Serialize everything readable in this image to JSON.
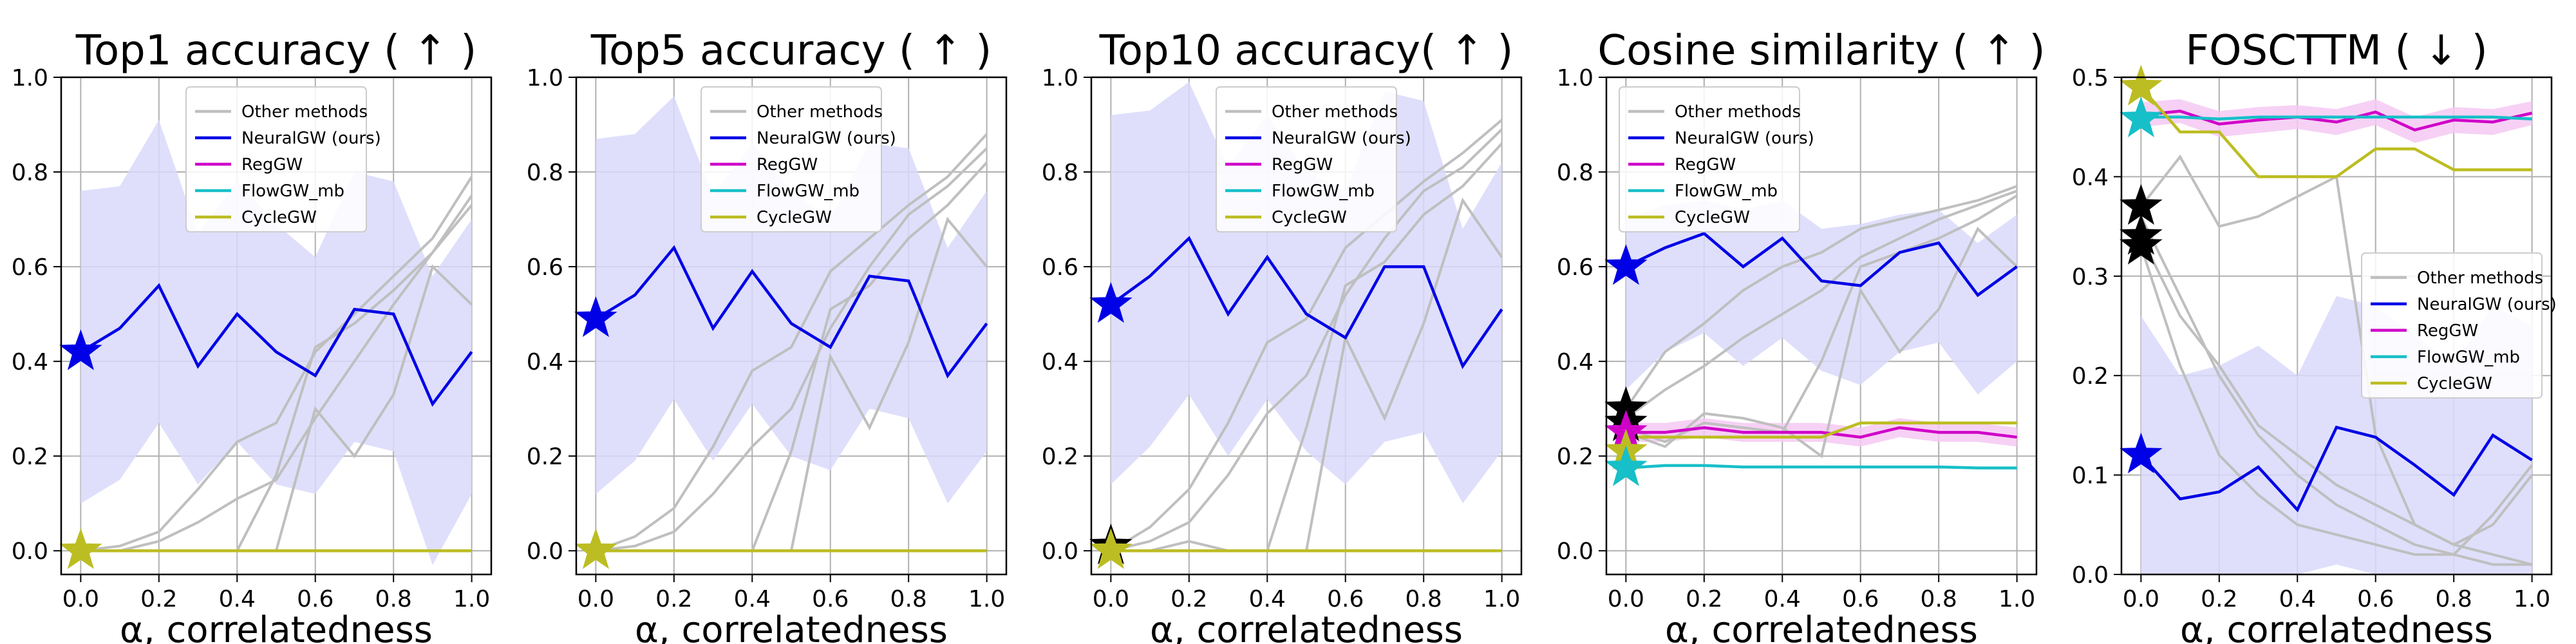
{
  "colors": {
    "other": "#bfbfbf",
    "neuralgw": "#0000e6",
    "neuralgw_band": "#d9d9fb",
    "reggw": "#d000c8",
    "reggw_band": "#f5c9f3",
    "flowgw": "#17bfc8",
    "cyclegw": "#bcbd22",
    "other_star": "#000000",
    "grid": "#b0b0b0"
  },
  "chart_data": [
    {
      "type": "line",
      "title": "Top1 accuracy ( ↑ )",
      "xlabel": "α, correlatedness",
      "ylabel": "",
      "ylim": [
        -0.05,
        1.0
      ],
      "xlim": [
        -0.05,
        1.05
      ],
      "xticks": [
        "0.0",
        "0.2",
        "0.4",
        "0.6",
        "0.8",
        "1.0"
      ],
      "yticks": [
        "0.0",
        "0.2",
        "0.4",
        "0.6",
        "0.8",
        "1.0"
      ],
      "grid": true,
      "legend_position": "top-center",
      "x": [
        0.0,
        0.1,
        0.2,
        0.3,
        0.4,
        0.5,
        0.6,
        0.7,
        0.8,
        0.9,
        1.0
      ],
      "other_methods": [
        [
          0.0,
          0.01,
          0.04,
          0.13,
          0.23,
          0.27,
          0.42,
          0.5,
          0.58,
          0.66,
          0.79
        ],
        [
          0.0,
          0.0,
          0.02,
          0.06,
          0.11,
          0.15,
          0.28,
          0.4,
          0.52,
          0.63,
          0.75
        ],
        [
          0.0,
          0.0,
          0.0,
          0.0,
          0.0,
          0.0,
          0.3,
          0.2,
          0.33,
          0.6,
          0.52
        ],
        [
          0.0,
          0.0,
          0.0,
          0.0,
          0.0,
          0.16,
          0.43,
          0.48,
          0.55,
          0.63,
          0.73
        ]
      ],
      "series": [
        {
          "name": "NeuralGW (ours)",
          "values": [
            0.42,
            0.47,
            0.56,
            0.39,
            0.5,
            0.42,
            0.37,
            0.51,
            0.5,
            0.31,
            0.42
          ],
          "band_upper": [
            0.76,
            0.77,
            0.91,
            0.67,
            0.78,
            0.69,
            0.62,
            0.8,
            0.78,
            0.58,
            0.7
          ],
          "band_lower": [
            0.1,
            0.15,
            0.27,
            0.14,
            0.23,
            0.14,
            0.12,
            0.23,
            0.21,
            -0.03,
            0.12
          ]
        },
        {
          "name": "RegGW",
          "values": [
            0.0,
            0.0,
            0.0,
            0.0,
            0.0,
            0.0,
            0.0,
            0.0,
            0.0,
            0.0,
            0.0
          ]
        },
        {
          "name": "FlowGW_mb",
          "values": [
            0.0,
            0.0,
            0.0,
            0.0,
            0.0,
            0.0,
            0.0,
            0.0,
            0.0,
            0.0,
            0.0
          ]
        },
        {
          "name": "CycleGW",
          "values": [
            0.0,
            0.0,
            0.0,
            0.0,
            0.0,
            0.0,
            0.0,
            0.0,
            0.0,
            0.0,
            0.0
          ]
        }
      ],
      "stars": [
        {
          "series": "NeuralGW (ours)",
          "value": 0.42
        },
        {
          "series": "CycleGW",
          "value": 0.0
        }
      ]
    },
    {
      "type": "line",
      "title": "Top5 accuracy ( ↑ )",
      "xlabel": "α, correlatedness",
      "ylabel": "",
      "ylim": [
        -0.05,
        1.0
      ],
      "xlim": [
        -0.05,
        1.05
      ],
      "xticks": [
        "0.0",
        "0.2",
        "0.4",
        "0.6",
        "0.8",
        "1.0"
      ],
      "yticks": [
        "0.0",
        "0.2",
        "0.4",
        "0.6",
        "0.8",
        "1.0"
      ],
      "grid": true,
      "legend_position": "top-center",
      "x": [
        0.0,
        0.1,
        0.2,
        0.3,
        0.4,
        0.5,
        0.6,
        0.7,
        0.8,
        0.9,
        1.0
      ],
      "other_methods": [
        [
          0.0,
          0.03,
          0.09,
          0.22,
          0.38,
          0.43,
          0.59,
          0.66,
          0.73,
          0.79,
          0.88
        ],
        [
          0.0,
          0.01,
          0.04,
          0.12,
          0.22,
          0.3,
          0.47,
          0.6,
          0.71,
          0.77,
          0.85
        ],
        [
          0.0,
          0.0,
          0.0,
          0.0,
          0.0,
          0.0,
          0.41,
          0.26,
          0.44,
          0.7,
          0.6
        ],
        [
          0.0,
          0.0,
          0.0,
          0.0,
          0.0,
          0.21,
          0.51,
          0.56,
          0.66,
          0.73,
          0.82
        ]
      ],
      "series": [
        {
          "name": "NeuralGW (ours)",
          "values": [
            0.49,
            0.54,
            0.64,
            0.47,
            0.59,
            0.48,
            0.43,
            0.58,
            0.57,
            0.37,
            0.48
          ],
          "band_upper": [
            0.87,
            0.88,
            0.96,
            0.75,
            0.86,
            0.76,
            0.7,
            0.86,
            0.85,
            0.64,
            0.76
          ],
          "band_lower": [
            0.12,
            0.19,
            0.32,
            0.19,
            0.31,
            0.2,
            0.17,
            0.3,
            0.28,
            0.1,
            0.21
          ]
        },
        {
          "name": "RegGW",
          "values": [
            0.0,
            0.0,
            0.0,
            0.0,
            0.0,
            0.0,
            0.0,
            0.0,
            0.0,
            0.0,
            0.0
          ]
        },
        {
          "name": "FlowGW_mb",
          "values": [
            0.0,
            0.0,
            0.0,
            0.0,
            0.0,
            0.0,
            0.0,
            0.0,
            0.0,
            0.0,
            0.0
          ]
        },
        {
          "name": "CycleGW",
          "values": [
            0.0,
            0.0,
            0.0,
            0.0,
            0.0,
            0.0,
            0.0,
            0.0,
            0.0,
            0.0,
            0.0
          ]
        }
      ],
      "stars": [
        {
          "series": "NeuralGW (ours)",
          "value": 0.49
        },
        {
          "series": "CycleGW",
          "value": 0.0
        }
      ]
    },
    {
      "type": "line",
      "title": "Top10 accuracy( ↑ )",
      "xlabel": "α, correlatedness",
      "ylabel": "",
      "ylim": [
        -0.05,
        1.0
      ],
      "xlim": [
        -0.05,
        1.05
      ],
      "xticks": [
        "0.0",
        "0.2",
        "0.4",
        "0.6",
        "0.8",
        "1.0"
      ],
      "yticks": [
        "0.0",
        "0.2",
        "0.4",
        "0.6",
        "0.8",
        "1.0"
      ],
      "grid": true,
      "legend_position": "top-center",
      "x": [
        0.0,
        0.1,
        0.2,
        0.3,
        0.4,
        0.5,
        0.6,
        0.7,
        0.8,
        0.9,
        1.0
      ],
      "other_methods": [
        [
          0.0,
          0.05,
          0.13,
          0.27,
          0.44,
          0.49,
          0.64,
          0.71,
          0.78,
          0.84,
          0.91
        ],
        [
          0.0,
          0.02,
          0.06,
          0.16,
          0.29,
          0.37,
          0.54,
          0.66,
          0.76,
          0.81,
          0.89
        ],
        [
          0.0,
          0.0,
          0.0,
          0.0,
          0.0,
          0.0,
          0.45,
          0.28,
          0.48,
          0.74,
          0.62
        ],
        [
          0.0,
          0.0,
          0.02,
          0.0,
          0.0,
          0.26,
          0.56,
          0.61,
          0.71,
          0.77,
          0.86
        ]
      ],
      "series": [
        {
          "name": "NeuralGW (ours)",
          "values": [
            0.52,
            0.58,
            0.66,
            0.5,
            0.62,
            0.5,
            0.45,
            0.6,
            0.6,
            0.39,
            0.51
          ],
          "band_upper": [
            0.92,
            0.93,
            0.99,
            0.81,
            0.92,
            0.8,
            0.76,
            0.97,
            0.95,
            0.68,
            0.82
          ],
          "band_lower": [
            0.14,
            0.22,
            0.33,
            0.2,
            0.32,
            0.21,
            0.14,
            0.23,
            0.25,
            0.1,
            0.21
          ]
        },
        {
          "name": "RegGW",
          "values": [
            0.0,
            0.0,
            0.0,
            0.0,
            0.0,
            0.0,
            0.0,
            0.0,
            0.0,
            0.0,
            0.0
          ]
        },
        {
          "name": "FlowGW_mb",
          "values": [
            0.0,
            0.0,
            0.0,
            0.0,
            0.0,
            0.0,
            0.0,
            0.0,
            0.0,
            0.0,
            0.0
          ]
        },
        {
          "name": "CycleGW",
          "values": [
            0.0,
            0.0,
            0.0,
            0.0,
            0.0,
            0.0,
            0.0,
            0.0,
            0.0,
            0.0,
            0.0
          ]
        }
      ],
      "stars": [
        {
          "series": "NeuralGW (ours)",
          "value": 0.52
        },
        {
          "series": "Other methods",
          "value": 0.01
        },
        {
          "series": "CycleGW",
          "value": 0.0
        }
      ]
    },
    {
      "type": "line",
      "title": "Cosine similarity ( ↑ )",
      "xlabel": "α, correlatedness",
      "ylabel": "",
      "ylim": [
        -0.05,
        1.0
      ],
      "xlim": [
        -0.05,
        1.05
      ],
      "xticks": [
        "0.0",
        "0.2",
        "0.4",
        "0.6",
        "0.8",
        "1.0"
      ],
      "yticks": [
        "0.0",
        "0.2",
        "0.4",
        "0.6",
        "0.8",
        "1.0"
      ],
      "grid": true,
      "legend_position": "top-left",
      "x": [
        0.0,
        0.1,
        0.2,
        0.3,
        0.4,
        0.5,
        0.6,
        0.7,
        0.8,
        0.9,
        1.0
      ],
      "other_methods": [
        [
          0.3,
          0.42,
          0.48,
          0.55,
          0.6,
          0.63,
          0.68,
          0.7,
          0.72,
          0.74,
          0.77
        ],
        [
          0.28,
          0.34,
          0.39,
          0.45,
          0.5,
          0.55,
          0.62,
          0.66,
          0.7,
          0.73,
          0.76
        ],
        [
          0.25,
          0.22,
          0.29,
          0.28,
          0.26,
          0.2,
          0.55,
          0.42,
          0.51,
          0.68,
          0.6
        ],
        [
          0.26,
          0.23,
          0.27,
          0.26,
          0.25,
          0.4,
          0.6,
          0.63,
          0.66,
          0.7,
          0.75
        ]
      ],
      "series": [
        {
          "name": "NeuralGW (ours)",
          "values": [
            0.6,
            0.64,
            0.67,
            0.6,
            0.66,
            0.57,
            0.56,
            0.63,
            0.65,
            0.54,
            0.6
          ],
          "band_upper": [
            0.7,
            0.73,
            0.74,
            0.72,
            0.74,
            0.68,
            0.69,
            0.71,
            0.72,
            0.65,
            0.71
          ],
          "band_lower": [
            0.34,
            0.42,
            0.46,
            0.39,
            0.45,
            0.38,
            0.35,
            0.42,
            0.44,
            0.33,
            0.4
          ]
        },
        {
          "name": "RegGW",
          "values": [
            0.25,
            0.25,
            0.26,
            0.25,
            0.25,
            0.25,
            0.24,
            0.26,
            0.25,
            0.25,
            0.24
          ],
          "band_upper": [
            0.27,
            0.27,
            0.28,
            0.27,
            0.27,
            0.27,
            0.26,
            0.28,
            0.27,
            0.27,
            0.26
          ],
          "band_lower": [
            0.23,
            0.23,
            0.24,
            0.23,
            0.23,
            0.23,
            0.22,
            0.24,
            0.23,
            0.23,
            0.22
          ]
        },
        {
          "name": "FlowGW_mb",
          "values": [
            0.175,
            0.18,
            0.18,
            0.177,
            0.177,
            0.177,
            0.177,
            0.177,
            0.177,
            0.175,
            0.175
          ]
        },
        {
          "name": "CycleGW",
          "values": [
            0.24,
            0.24,
            0.24,
            0.24,
            0.24,
            0.24,
            0.27,
            0.27,
            0.27,
            0.27,
            0.27
          ]
        }
      ],
      "stars": [
        {
          "series": "NeuralGW (ours)",
          "value": 0.6
        },
        {
          "series": "Other methods",
          "value": 0.3
        },
        {
          "series": "Other methods",
          "value": 0.27
        },
        {
          "series": "RegGW",
          "value": 0.25
        },
        {
          "series": "CycleGW",
          "value": 0.21
        },
        {
          "series": "FlowGW_mb",
          "value": 0.175
        }
      ]
    },
    {
      "type": "line",
      "title": "FOSCTTM ( ↓ )",
      "xlabel": "α, correlatedness",
      "ylabel": "",
      "ylim": [
        0.0,
        0.5
      ],
      "xlim": [
        -0.05,
        1.05
      ],
      "xticks": [
        "0.0",
        "0.2",
        "0.4",
        "0.6",
        "0.8",
        "1.0"
      ],
      "yticks": [
        "0.0",
        "0.1",
        "0.2",
        "0.3",
        "0.4",
        "0.5"
      ],
      "grid": true,
      "legend_position": "center-right",
      "x": [
        0.0,
        0.1,
        0.2,
        0.3,
        0.4,
        0.5,
        0.6,
        0.7,
        0.8,
        0.9,
        1.0
      ],
      "other_methods": [
        [
          0.37,
          0.42,
          0.35,
          0.36,
          0.38,
          0.4,
          0.14,
          0.05,
          0.03,
          0.02,
          0.01
        ],
        [
          0.34,
          0.26,
          0.21,
          0.15,
          0.12,
          0.09,
          0.07,
          0.05,
          0.03,
          0.05,
          0.1
        ],
        [
          0.33,
          0.21,
          0.12,
          0.08,
          0.05,
          0.04,
          0.03,
          0.02,
          0.02,
          0.01,
          0.01
        ],
        [
          0.36,
          0.28,
          0.2,
          0.14,
          0.1,
          0.07,
          0.05,
          0.03,
          0.02,
          0.06,
          0.11
        ]
      ],
      "series": [
        {
          "name": "NeuralGW (ours)",
          "values": [
            0.12,
            0.076,
            0.083,
            0.108,
            0.065,
            0.148,
            0.138,
            0.11,
            0.08,
            0.14,
            0.115
          ],
          "band_upper": [
            0.26,
            0.2,
            0.21,
            0.23,
            0.2,
            0.28,
            0.27,
            0.24,
            0.21,
            0.27,
            0.25
          ],
          "band_lower": [
            0.0,
            0.0,
            0.0,
            0.0,
            0.0,
            0.01,
            0.0,
            0.0,
            0.0,
            0.0,
            0.0
          ]
        },
        {
          "name": "RegGW",
          "values": [
            0.462,
            0.466,
            0.453,
            0.457,
            0.46,
            0.455,
            0.465,
            0.447,
            0.457,
            0.455,
            0.464
          ],
          "band_upper": [
            0.475,
            0.478,
            0.466,
            0.47,
            0.472,
            0.468,
            0.478,
            0.46,
            0.47,
            0.468,
            0.476
          ],
          "band_lower": [
            0.45,
            0.454,
            0.44,
            0.444,
            0.448,
            0.442,
            0.452,
            0.434,
            0.444,
            0.442,
            0.452
          ]
        },
        {
          "name": "FlowGW_mb",
          "values": [
            0.46,
            0.46,
            0.458,
            0.46,
            0.46,
            0.46,
            0.46,
            0.46,
            0.46,
            0.46,
            0.458
          ]
        },
        {
          "name": "CycleGW",
          "values": [
            0.49,
            0.445,
            0.445,
            0.4,
            0.4,
            0.4,
            0.428,
            0.428,
            0.407,
            0.407,
            0.407
          ]
        }
      ],
      "stars": [
        {
          "series": "CycleGW",
          "value": 0.49
        },
        {
          "series": "FlowGW_mb",
          "value": 0.458
        },
        {
          "series": "Other methods",
          "value": 0.37
        },
        {
          "series": "Other methods",
          "value": 0.34
        },
        {
          "series": "Other methods",
          "value": 0.33
        },
        {
          "series": "NeuralGW (ours)",
          "value": 0.12
        }
      ]
    }
  ]
}
